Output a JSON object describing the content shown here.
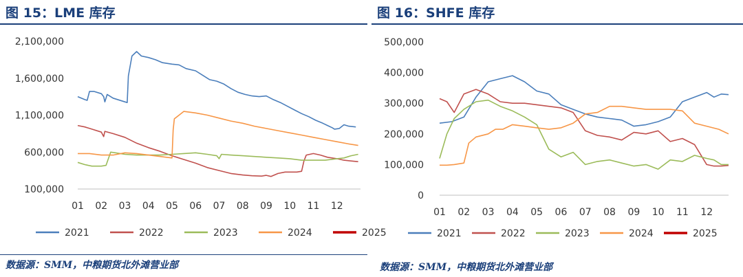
{
  "chart_data": [
    {
      "type": "line",
      "title": "图 15：LME 库存",
      "source": "数据源：SMM，中粮期货北外滩营业部",
      "xlabel": "",
      "ylabel": "",
      "x_ticks": [
        "01",
        "02",
        "03",
        "04",
        "05",
        "06",
        "07",
        "08",
        "09",
        "10",
        "11",
        "12"
      ],
      "xlim": [
        1,
        13
      ],
      "y_ticks": [
        100000,
        600000,
        1100000,
        1600000,
        2100000
      ],
      "y_tick_labels": [
        "100,000",
        "600,000",
        "1,100,000",
        "1,600,000",
        "2,100,000"
      ],
      "ylim": [
        100000,
        2100000
      ],
      "grid": false,
      "legend_position": "bottom",
      "series": [
        {
          "name": "2021",
          "color": "#4a7ebb",
          "width": 1.6,
          "x": [
            1.0,
            1.3,
            1.4,
            1.5,
            1.7,
            2.0,
            2.1,
            2.15,
            2.25,
            2.5,
            3.0,
            3.1,
            3.15,
            3.3,
            3.5,
            3.7,
            4.0,
            4.3,
            4.6,
            5.0,
            5.3,
            5.6,
            6.0,
            6.3,
            6.6,
            6.9,
            7.2,
            7.5,
            7.8,
            8.1,
            8.4,
            8.7,
            9.0,
            9.3,
            9.6,
            9.9,
            10.2,
            10.5,
            10.8,
            11.1,
            11.4,
            11.6,
            11.8,
            11.9,
            12.1,
            12.3,
            12.5,
            12.8
          ],
          "y": [
            1350000,
            1310000,
            1300000,
            1420000,
            1420000,
            1390000,
            1350000,
            1280000,
            1380000,
            1330000,
            1280000,
            1270000,
            1630000,
            1900000,
            1960000,
            1900000,
            1880000,
            1850000,
            1810000,
            1790000,
            1780000,
            1730000,
            1700000,
            1640000,
            1580000,
            1560000,
            1520000,
            1460000,
            1410000,
            1380000,
            1360000,
            1350000,
            1360000,
            1310000,
            1270000,
            1220000,
            1170000,
            1120000,
            1080000,
            1030000,
            990000,
            960000,
            930000,
            910000,
            920000,
            970000,
            950000,
            940000
          ]
        },
        {
          "name": "2022",
          "color": "#c0504d",
          "width": 1.6,
          "x": [
            1.0,
            1.3,
            1.6,
            2.0,
            2.1,
            2.15,
            2.5,
            3.0,
            3.5,
            4.0,
            4.5,
            5.0,
            5.5,
            6.0,
            6.5,
            7.0,
            7.5,
            8.0,
            8.4,
            8.8,
            9.0,
            9.2,
            9.5,
            9.8,
            10.0,
            10.3,
            10.5,
            10.6,
            10.7,
            11.0,
            11.3,
            11.6,
            12.0,
            12.3,
            12.6,
            12.9
          ],
          "y": [
            960000,
            940000,
            910000,
            870000,
            810000,
            880000,
            850000,
            800000,
            720000,
            660000,
            610000,
            550000,
            500000,
            450000,
            390000,
            350000,
            310000,
            290000,
            280000,
            275000,
            285000,
            270000,
            310000,
            330000,
            330000,
            330000,
            340000,
            480000,
            560000,
            580000,
            560000,
            530000,
            510000,
            490000,
            480000,
            470000
          ]
        },
        {
          "name": "2023",
          "color": "#9bbb59",
          "width": 1.6,
          "x": [
            1.0,
            1.3,
            1.6,
            2.0,
            2.2,
            2.4,
            2.6,
            3.0,
            3.5,
            4.0,
            4.5,
            5.0,
            5.5,
            6.0,
            6.5,
            6.9,
            7.0,
            7.1,
            7.5,
            8.0,
            8.5,
            9.0,
            9.5,
            10.0,
            10.5,
            11.0,
            11.5,
            12.0,
            12.3,
            12.6,
            12.9
          ],
          "y": [
            460000,
            430000,
            410000,
            410000,
            420000,
            600000,
            590000,
            570000,
            560000,
            560000,
            560000,
            570000,
            580000,
            590000,
            570000,
            550000,
            510000,
            570000,
            560000,
            550000,
            540000,
            530000,
            520000,
            510000,
            490000,
            490000,
            490000,
            510000,
            520000,
            550000,
            570000
          ]
        },
        {
          "name": "2024",
          "color": "#f79646",
          "width": 1.6,
          "x": [
            1.0,
            1.5,
            2.0,
            2.5,
            3.0,
            3.5,
            4.0,
            4.5,
            5.0,
            5.05,
            5.1,
            5.3,
            5.5,
            6.0,
            6.5,
            7.0,
            7.5,
            8.0,
            8.5,
            9.0,
            9.5,
            10.0,
            10.5,
            11.0,
            11.5,
            12.0,
            12.5,
            12.9
          ],
          "y": [
            580000,
            580000,
            560000,
            560000,
            590000,
            580000,
            560000,
            540000,
            520000,
            900000,
            1050000,
            1100000,
            1150000,
            1130000,
            1100000,
            1060000,
            1020000,
            990000,
            950000,
            920000,
            890000,
            860000,
            830000,
            800000,
            770000,
            740000,
            710000,
            690000
          ]
        },
        {
          "name": "2025",
          "color": "#c00000",
          "width": 2.6,
          "x": [],
          "y": []
        }
      ]
    },
    {
      "type": "line",
      "title": "图 16：SHFE 库存",
      "source": "数据源：SMM，中粮期货北外滩营业部",
      "xlabel": "",
      "ylabel": "",
      "x_ticks": [
        "01",
        "02",
        "03",
        "04",
        "05",
        "06",
        "07",
        "08",
        "09",
        "10",
        "11",
        "12"
      ],
      "xlim": [
        1,
        12.9
      ],
      "y_ticks": [
        0,
        100000,
        200000,
        300000,
        400000,
        500000
      ],
      "y_tick_labels": [
        "0",
        "100,000",
        "200,000",
        "300,000",
        "400,000",
        "500,000"
      ],
      "ylim": [
        0,
        500000
      ],
      "grid": false,
      "legend_position": "bottom",
      "series": [
        {
          "name": "2021",
          "color": "#4a7ebb",
          "width": 1.6,
          "x": [
            1.0,
            1.5,
            2.0,
            2.5,
            3.0,
            3.5,
            4.0,
            4.5,
            5.0,
            5.5,
            6.0,
            6.5,
            7.0,
            7.5,
            8.0,
            8.5,
            9.0,
            9.5,
            10.0,
            10.5,
            11.0,
            11.5,
            12.0,
            12.3,
            12.6,
            12.9
          ],
          "y": [
            235000,
            240000,
            255000,
            320000,
            370000,
            380000,
            390000,
            370000,
            340000,
            330000,
            295000,
            280000,
            265000,
            255000,
            250000,
            245000,
            225000,
            230000,
            240000,
            255000,
            305000,
            320000,
            335000,
            320000,
            330000,
            328000
          ]
        },
        {
          "name": "2022",
          "color": "#c0504d",
          "width": 1.6,
          "x": [
            1.0,
            1.3,
            1.6,
            2.0,
            2.5,
            3.0,
            3.5,
            4.0,
            4.5,
            5.0,
            5.5,
            6.0,
            6.5,
            7.0,
            7.5,
            8.0,
            8.5,
            9.0,
            9.5,
            10.0,
            10.5,
            11.0,
            11.5,
            12.0,
            12.3,
            12.6,
            12.9
          ],
          "y": [
            315000,
            305000,
            270000,
            330000,
            345000,
            330000,
            305000,
            300000,
            300000,
            295000,
            290000,
            285000,
            270000,
            210000,
            195000,
            190000,
            180000,
            205000,
            200000,
            210000,
            175000,
            185000,
            165000,
            100000,
            95000,
            95000,
            97000
          ]
        },
        {
          "name": "2023",
          "color": "#9bbb59",
          "width": 1.6,
          "x": [
            1.0,
            1.3,
            1.6,
            2.0,
            2.5,
            3.0,
            3.5,
            4.0,
            4.5,
            5.0,
            5.5,
            6.0,
            6.5,
            7.0,
            7.5,
            8.0,
            8.5,
            9.0,
            9.5,
            10.0,
            10.5,
            11.0,
            11.5,
            12.0,
            12.3,
            12.6,
            12.9
          ],
          "y": [
            120000,
            200000,
            250000,
            280000,
            305000,
            310000,
            290000,
            275000,
            255000,
            230000,
            150000,
            125000,
            140000,
            100000,
            110000,
            115000,
            105000,
            95000,
            100000,
            85000,
            115000,
            110000,
            130000,
            120000,
            115000,
            100000,
            100000
          ]
        },
        {
          "name": "2024",
          "color": "#f79646",
          "width": 1.6,
          "x": [
            1.0,
            1.3,
            1.6,
            2.0,
            2.2,
            2.5,
            3.0,
            3.3,
            3.6,
            4.0,
            4.5,
            5.0,
            5.5,
            6.0,
            6.5,
            7.0,
            7.5,
            8.0,
            8.5,
            9.0,
            9.5,
            10.0,
            10.5,
            11.0,
            11.5,
            12.0,
            12.5,
            12.9
          ],
          "y": [
            98000,
            98000,
            100000,
            105000,
            170000,
            190000,
            200000,
            215000,
            215000,
            230000,
            225000,
            220000,
            215000,
            220000,
            235000,
            265000,
            270000,
            290000,
            290000,
            285000,
            280000,
            280000,
            280000,
            275000,
            235000,
            225000,
            215000,
            200000
          ]
        },
        {
          "name": "2025",
          "color": "#c00000",
          "width": 2.6,
          "x": [],
          "y": []
        }
      ]
    }
  ]
}
